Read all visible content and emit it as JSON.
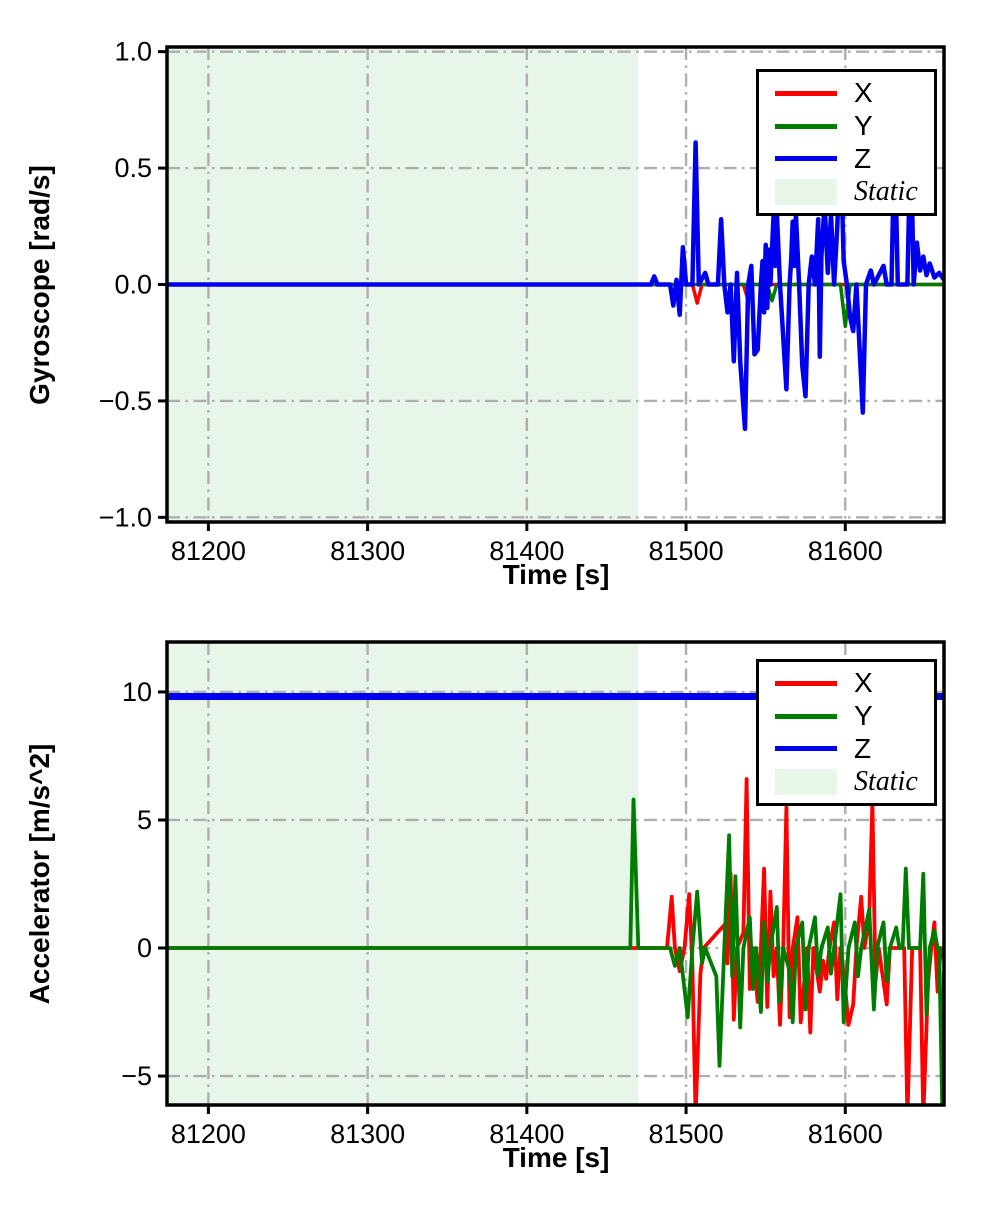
{
  "figure": {
    "background": "#ffffff"
  },
  "colors": {
    "x_series": "#ff0000",
    "y_series": "#007d00",
    "z_series": "#0000ee",
    "static_region": "#e7f6e9",
    "grid": "#aeaeae",
    "frame": "#000000"
  },
  "chart_data": [
    {
      "id": "gyroscope",
      "type": "line",
      "title": "",
      "ylabel": "Gyroscope [rad/s]",
      "xlabel": "Time [s]",
      "xlim": [
        81174,
        81662
      ],
      "ylim": [
        -1.02,
        1.02
      ],
      "xticks": [
        81200,
        81300,
        81400,
        81500,
        81600
      ],
      "xtick_labels": [
        "81200",
        "81300",
        "81400",
        "81500",
        "81600"
      ],
      "yticks": [
        1.0,
        0.5,
        0.0,
        -0.5,
        -1.0
      ],
      "ytick_labels": [
        "1.0",
        "0.5",
        "0.0",
        "−0.5",
        "−1.0"
      ],
      "grid": "dash-dot",
      "legend_position": "upper right",
      "static_region": {
        "start": 81174,
        "end": 81470,
        "label": "Static",
        "color": "#e7f6e9"
      },
      "legend": [
        {
          "label": "X",
          "type": "line",
          "color": "#ff0000"
        },
        {
          "label": "Y",
          "type": "line",
          "color": "#007d00"
        },
        {
          "label": "Z",
          "type": "line",
          "color": "#0000ee"
        },
        {
          "label": "Static",
          "type": "patch",
          "color": "#e7f6e9"
        }
      ],
      "series": [
        {
          "name": "X",
          "color": "#ff0000",
          "width": 3.5,
          "points": [
            [
              81174,
              0
            ],
            [
              81504,
              0
            ],
            [
              81507,
              -0.08
            ],
            [
              81510,
              0
            ],
            [
              81536,
              0
            ],
            [
              81539,
              -0.07
            ],
            [
              81542,
              0
            ],
            [
              81662,
              0
            ]
          ]
        },
        {
          "name": "Y",
          "color": "#007d00",
          "width": 3.5,
          "points": [
            [
              81174,
              0
            ],
            [
              81551,
              0
            ],
            [
              81554,
              -0.07
            ],
            [
              81557,
              0
            ],
            [
              81597,
              0
            ],
            [
              81600,
              -0.18
            ],
            [
              81603,
              0
            ],
            [
              81662,
              0
            ]
          ]
        },
        {
          "name": "Z",
          "color": "#0000ee",
          "width": 4.5,
          "points": [
            [
              81174,
              0
            ],
            [
              81478,
              0
            ],
            [
              81480,
              0.035
            ],
            [
              81482,
              0
            ],
            [
              81490,
              0
            ],
            [
              81492,
              -0.09
            ],
            [
              81494,
              0.02
            ],
            [
              81496,
              -0.13
            ],
            [
              81498,
              0.16
            ],
            [
              81500,
              0
            ],
            [
              81504,
              0
            ],
            [
              81506,
              0.61
            ],
            [
              81508,
              0
            ],
            [
              81512,
              0.05
            ],
            [
              81514,
              0
            ],
            [
              81520,
              0
            ],
            [
              81522,
              0.28
            ],
            [
              81524,
              0
            ],
            [
              81526,
              -0.12
            ],
            [
              81528,
              0
            ],
            [
              81530,
              -0.33
            ],
            [
              81532,
              0.05
            ],
            [
              81534,
              -0.33
            ],
            [
              81537,
              -0.62
            ],
            [
              81539,
              0
            ],
            [
              81541,
              0.08
            ],
            [
              81543,
              -0.3
            ],
            [
              81545,
              -0.28
            ],
            [
              81547,
              0
            ],
            [
              81548,
              0.1
            ],
            [
              81549,
              -0.12
            ],
            [
              81550,
              0.17
            ],
            [
              81551,
              -0.1
            ],
            [
              81552,
              0.15
            ],
            [
              81553,
              0
            ],
            [
              81555,
              0.3
            ],
            [
              81556,
              0.08
            ],
            [
              81557,
              0.31
            ],
            [
              81559,
              0
            ],
            [
              81563,
              -0.45
            ],
            [
              81565,
              0
            ],
            [
              81566,
              0.1
            ],
            [
              81567,
              0.27
            ],
            [
              81568,
              0.08
            ],
            [
              81569,
              0.3
            ],
            [
              81571,
              0
            ],
            [
              81573,
              -0.35
            ],
            [
              81575,
              -0.48
            ],
            [
              81577,
              0
            ],
            [
              81579,
              0.12
            ],
            [
              81581,
              0
            ],
            [
              81583,
              0.28
            ],
            [
              81584,
              -0.31
            ],
            [
              81585,
              0.12
            ],
            [
              81587,
              0.35
            ],
            [
              81589,
              0.05
            ],
            [
              81591,
              0.3
            ],
            [
              81593,
              0
            ],
            [
              81595,
              0.25
            ],
            [
              81597,
              0.62
            ],
            [
              81599,
              0.1
            ],
            [
              81601,
              0
            ],
            [
              81603,
              -0.14
            ],
            [
              81605,
              -0.2
            ],
            [
              81607,
              0
            ],
            [
              81611,
              -0.55
            ],
            [
              81613,
              0
            ],
            [
              81616,
              0.06
            ],
            [
              81618,
              0
            ],
            [
              81624,
              0.08
            ],
            [
              81626,
              0
            ],
            [
              81629,
              0
            ],
            [
              81631,
              0.66
            ],
            [
              81633,
              0
            ],
            [
              81639,
              0
            ],
            [
              81641,
              0.66
            ],
            [
              81643,
              0
            ],
            [
              81645,
              0.18
            ],
            [
              81647,
              0.06
            ],
            [
              81649,
              0.12
            ],
            [
              81651,
              0.04
            ],
            [
              81653,
              0.09
            ],
            [
              81656,
              0.03
            ],
            [
              81659,
              0.05
            ],
            [
              81662,
              0.02
            ]
          ]
        }
      ]
    },
    {
      "id": "accelerator",
      "type": "line",
      "title": "",
      "ylabel": "Accelerator [m/s^2]",
      "xlabel": "Time [s]",
      "xlim": [
        81174,
        81662
      ],
      "ylim": [
        -6.13,
        11.95
      ],
      "xticks": [
        81200,
        81300,
        81400,
        81500,
        81600
      ],
      "xtick_labels": [
        "81200",
        "81300",
        "81400",
        "81500",
        "81600"
      ],
      "yticks": [
        10,
        5,
        0,
        -5
      ],
      "ytick_labels": [
        "10",
        "5",
        "0",
        "−5"
      ],
      "grid": "dash-dot",
      "legend_position": "upper right",
      "static_region": {
        "start": 81174,
        "end": 81470,
        "label": "Static",
        "color": "#e7f6e9"
      },
      "legend": [
        {
          "label": "X",
          "type": "line",
          "color": "#ff0000"
        },
        {
          "label": "Y",
          "type": "line",
          "color": "#007d00"
        },
        {
          "label": "Z",
          "type": "line",
          "color": "#0000ee"
        },
        {
          "label": "Static",
          "type": "patch",
          "color": "#e7f6e9"
        }
      ],
      "series": [
        {
          "name": "X",
          "color": "#ff0000",
          "width": 3.8,
          "points": [
            [
              81174,
              0
            ],
            [
              81488,
              0
            ],
            [
              81491,
              2.0
            ],
            [
              81493,
              0
            ],
            [
              81496,
              -0.9
            ],
            [
              81499,
              0
            ],
            [
              81502,
              2.1
            ],
            [
              81504,
              -0.7
            ],
            [
              81506,
              -6.6
            ],
            [
              81509,
              -1.0
            ],
            [
              81511,
              0
            ],
            [
              81524,
              0.9
            ],
            [
              81526,
              -0.6
            ],
            [
              81528,
              2.9
            ],
            [
              81530,
              -2.8
            ],
            [
              81532,
              0
            ],
            [
              81536,
              0.6
            ],
            [
              81538,
              6.6
            ],
            [
              81540,
              -1.6
            ],
            [
              81542,
              0
            ],
            [
              81545,
              -2.1
            ],
            [
              81547,
              0
            ],
            [
              81549,
              3.1
            ],
            [
              81551,
              -2.3
            ],
            [
              81553,
              2.2
            ],
            [
              81555,
              -1.1
            ],
            [
              81557,
              0
            ],
            [
              81559,
              -3.0
            ],
            [
              81561,
              0
            ],
            [
              81563,
              5.5
            ],
            [
              81565,
              -2.7
            ],
            [
              81567,
              0
            ],
            [
              81570,
              1.2
            ],
            [
              81572,
              -2.9
            ],
            [
              81574,
              -1.5
            ],
            [
              81576,
              0
            ],
            [
              81578,
              -3.3
            ],
            [
              81580,
              0
            ],
            [
              81584,
              -1.7
            ],
            [
              81586,
              -0.5
            ],
            [
              81588,
              -1.2
            ],
            [
              81590,
              0
            ],
            [
              81593,
              1.0
            ],
            [
              81595,
              -2.0
            ],
            [
              81597,
              0
            ],
            [
              81600,
              -1.6
            ],
            [
              81602,
              -3.0
            ],
            [
              81605,
              -2.2
            ],
            [
              81607,
              0
            ],
            [
              81610,
              2.0
            ],
            [
              81612,
              0
            ],
            [
              81615,
              1.2
            ],
            [
              81617,
              5.7
            ],
            [
              81619,
              -1.3
            ],
            [
              81621,
              0
            ],
            [
              81626,
              -2.2
            ],
            [
              81628,
              0
            ],
            [
              81637,
              0
            ],
            [
              81639,
              -6.6
            ],
            [
              81642,
              0
            ],
            [
              81647,
              0
            ],
            [
              81649,
              -6.6
            ],
            [
              81652,
              -1.3
            ],
            [
              81654,
              0
            ],
            [
              81656,
              1.0
            ],
            [
              81658,
              -1.7
            ],
            [
              81660,
              0
            ],
            [
              81662,
              -0.4
            ]
          ]
        },
        {
          "name": "Y",
          "color": "#007d00",
          "width": 3.8,
          "points": [
            [
              81174,
              0
            ],
            [
              81465,
              0
            ],
            [
              81467,
              5.8
            ],
            [
              81470,
              0
            ],
            [
              81490,
              0
            ],
            [
              81493,
              -0.7
            ],
            [
              81496,
              0
            ],
            [
              81501,
              -2.7
            ],
            [
              81504,
              0
            ],
            [
              81507,
              2.2
            ],
            [
              81510,
              -0.6
            ],
            [
              81512,
              0
            ],
            [
              81519,
              -1.1
            ],
            [
              81521,
              -4.6
            ],
            [
              81524,
              0
            ],
            [
              81527,
              4.4
            ],
            [
              81529,
              -1.1
            ],
            [
              81531,
              2.8
            ],
            [
              81534,
              -3.1
            ],
            [
              81536,
              0
            ],
            [
              81540,
              1.2
            ],
            [
              81542,
              -1.6
            ],
            [
              81544,
              0
            ],
            [
              81547,
              -2.5
            ],
            [
              81549,
              1.0
            ],
            [
              81551,
              -1.3
            ],
            [
              81553,
              0
            ],
            [
              81557,
              1.6
            ],
            [
              81559,
              -2.1
            ],
            [
              81561,
              0
            ],
            [
              81565,
              -0.9
            ],
            [
              81567,
              -2.9
            ],
            [
              81569,
              0
            ],
            [
              81573,
              1.0
            ],
            [
              81575,
              -2.4
            ],
            [
              81577,
              0
            ],
            [
              81581,
              1.2
            ],
            [
              81583,
              -1.1
            ],
            [
              81585,
              0
            ],
            [
              81589,
              0.8
            ],
            [
              81591,
              -1.0
            ],
            [
              81593,
              0
            ],
            [
              81597,
              2.1
            ],
            [
              81599,
              -2.9
            ],
            [
              81602,
              0
            ],
            [
              81606,
              1.0
            ],
            [
              81608,
              -1.1
            ],
            [
              81610,
              0
            ],
            [
              81615,
              1.5
            ],
            [
              81618,
              -2.4
            ],
            [
              81620,
              0
            ],
            [
              81624,
              1.0
            ],
            [
              81626,
              -1.3
            ],
            [
              81628,
              0
            ],
            [
              81632,
              0.8
            ],
            [
              81634,
              0
            ],
            [
              81636,
              0
            ],
            [
              81638,
              3.1
            ],
            [
              81640,
              0
            ],
            [
              81647,
              0
            ],
            [
              81649,
              2.9
            ],
            [
              81651,
              -2.6
            ],
            [
              81653,
              0
            ],
            [
              81656,
              0.7
            ],
            [
              81658,
              0
            ],
            [
              81659,
              0
            ],
            [
              81661,
              -6.6
            ],
            [
              81662,
              -1.0
            ]
          ]
        },
        {
          "name": "Z",
          "color": "#0000ee",
          "width": 7,
          "points": [
            [
              81174,
              9.82
            ],
            [
              81662,
              9.82
            ]
          ]
        }
      ]
    }
  ]
}
